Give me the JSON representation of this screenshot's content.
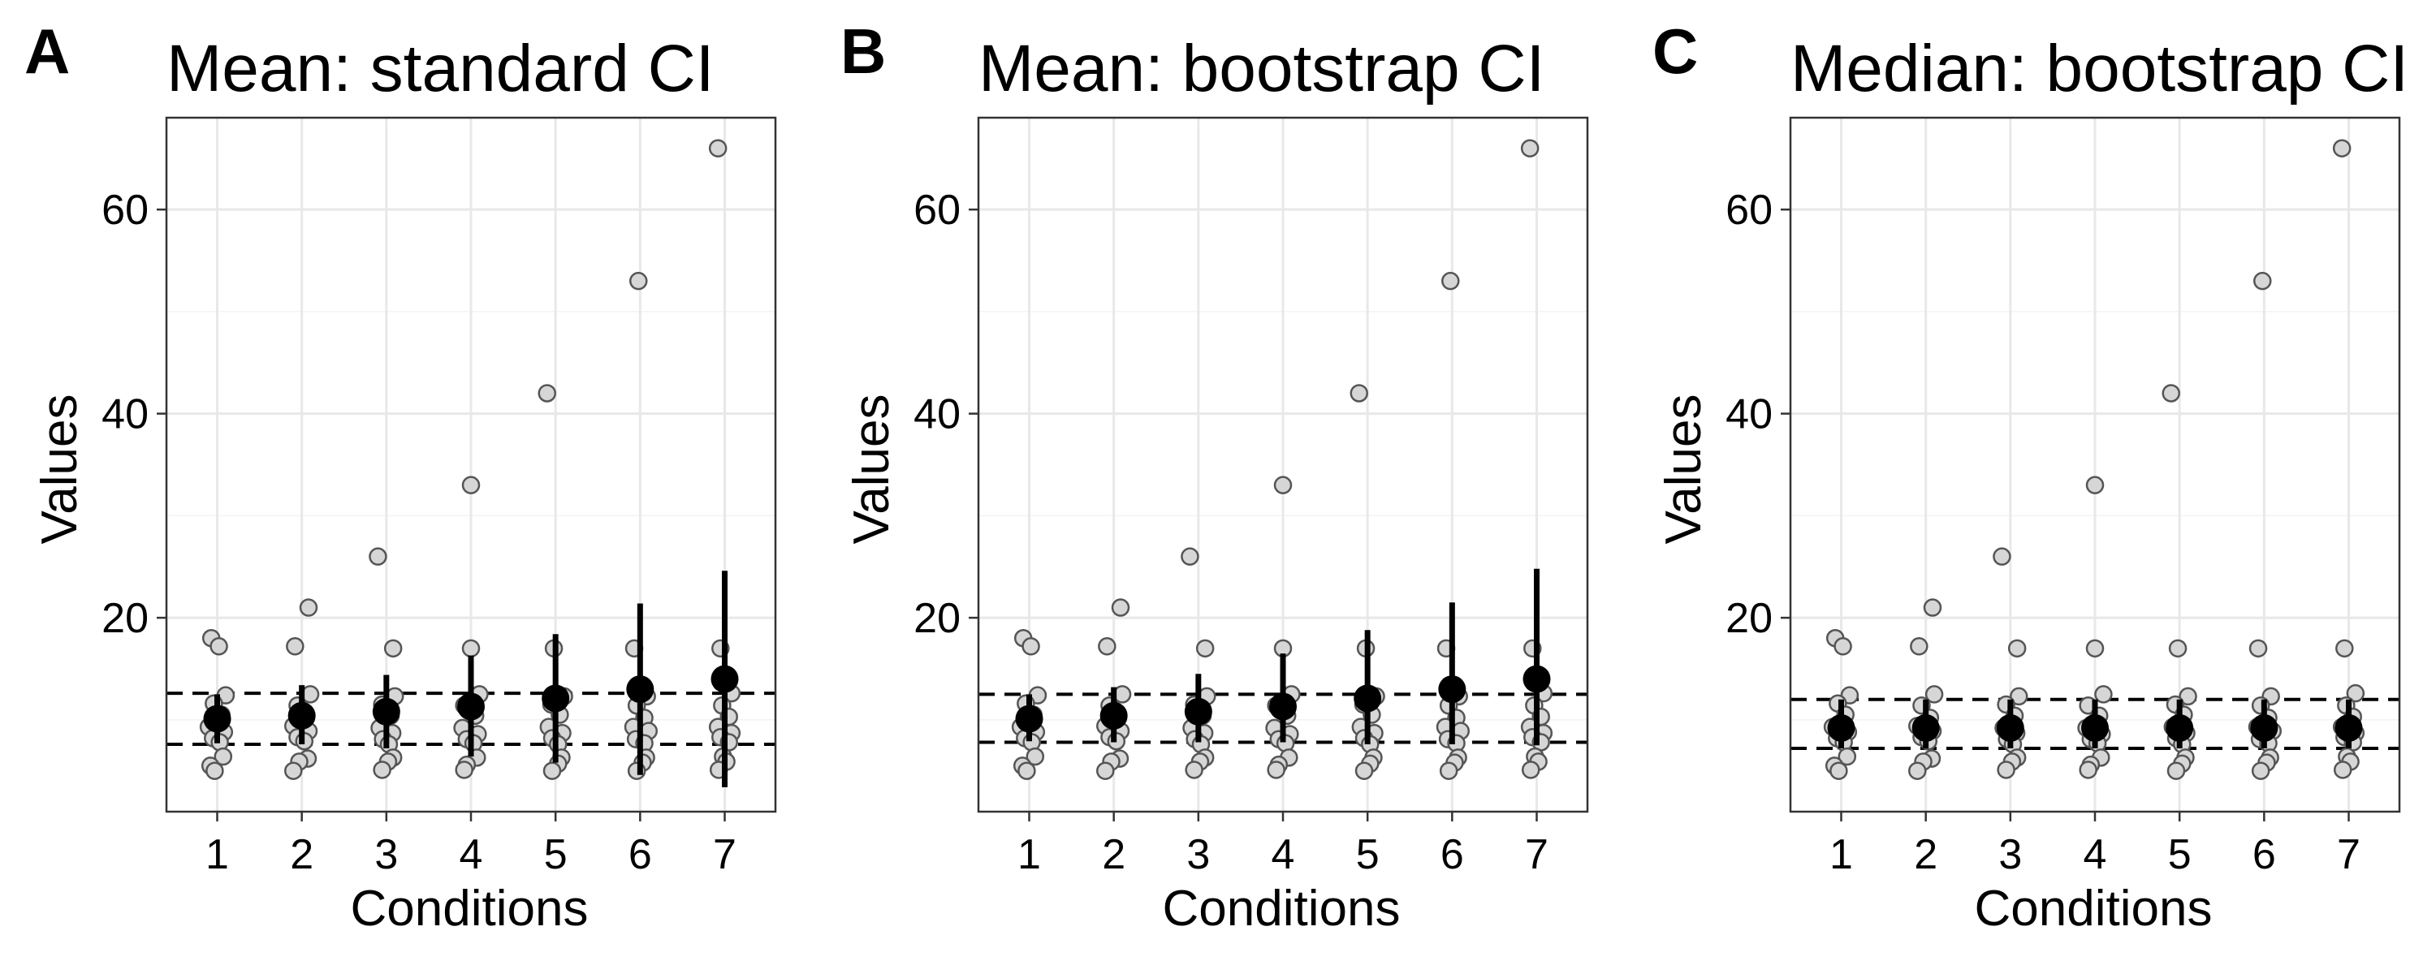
{
  "colors": {
    "raw_fill": "#d6d6d6",
    "raw_stroke": "#555555",
    "summary": "#000000",
    "grid": "#e8e8e8"
  },
  "chart_data": [
    {
      "letter": "A",
      "type": "scatter",
      "title": "Mean: standard CI",
      "xlabel": "Conditions",
      "ylabel": "Values",
      "xlim": [
        0.4,
        7.6
      ],
      "ylim": [
        1,
        69
      ],
      "categories": [
        "1",
        "2",
        "3",
        "4",
        "5",
        "6",
        "7"
      ],
      "yticks": [
        20,
        40,
        60
      ],
      "grid": true,
      "raw_points": [
        [
          [
            0.93,
            18
          ],
          [
            1.02,
            17.2
          ],
          [
            1.1,
            12.4
          ],
          [
            0.96,
            11.6
          ],
          [
            1.05,
            10.5
          ],
          [
            0.9,
            9.3
          ],
          [
            1.08,
            8.8
          ],
          [
            0.95,
            8.2
          ],
          [
            1.03,
            7.8
          ],
          [
            1.07,
            6.4
          ],
          [
            0.92,
            5.5
          ],
          [
            0.97,
            5
          ]
        ],
        [
          [
            1.92,
            17.2
          ],
          [
            2.08,
            21
          ],
          [
            2.1,
            12.5
          ],
          [
            1.95,
            11.4
          ],
          [
            2.05,
            10.2
          ],
          [
            1.9,
            9.4
          ],
          [
            2.08,
            8.9
          ],
          [
            1.95,
            8.3
          ],
          [
            2.03,
            7.9
          ],
          [
            2.07,
            6.2
          ],
          [
            1.97,
            5.9
          ],
          [
            1.9,
            5
          ]
        ],
        [
          [
            2.9,
            26
          ],
          [
            3.08,
            17
          ],
          [
            3.1,
            12.3
          ],
          [
            2.95,
            11.5
          ],
          [
            3.05,
            10.4
          ],
          [
            2.92,
            9.2
          ],
          [
            3.07,
            8.7
          ],
          [
            2.96,
            8.1
          ],
          [
            3.03,
            7.6
          ],
          [
            3.08,
            6.3
          ],
          [
            3.02,
            5.9
          ],
          [
            2.95,
            5.1
          ]
        ],
        [
          [
            4,
            33
          ],
          [
            4,
            17
          ],
          [
            4.1,
            12.5
          ],
          [
            3.92,
            11.4
          ],
          [
            4.05,
            10.4
          ],
          [
            3.9,
            9.2
          ],
          [
            4.08,
            8.6
          ],
          [
            3.95,
            8.1
          ],
          [
            4.03,
            7.7
          ],
          [
            4.07,
            6.3
          ],
          [
            3.95,
            5.6
          ],
          [
            3.92,
            5.1
          ]
        ],
        [
          [
            4.9,
            42
          ],
          [
            4.98,
            17
          ],
          [
            5.1,
            12.3
          ],
          [
            4.95,
            11.5
          ],
          [
            5.05,
            10.5
          ],
          [
            4.92,
            9.3
          ],
          [
            5.08,
            8.7
          ],
          [
            4.96,
            8.2
          ],
          [
            5.03,
            7.6
          ],
          [
            5.07,
            6.3
          ],
          [
            5.03,
            5.7
          ],
          [
            4.96,
            5
          ]
        ],
        [
          [
            5.98,
            53
          ],
          [
            5.93,
            17
          ],
          [
            6.08,
            12.3
          ],
          [
            5.96,
            11.4
          ],
          [
            6.05,
            10.2
          ],
          [
            5.92,
            9.3
          ],
          [
            6.1,
            8.9
          ],
          [
            5.95,
            8.1
          ],
          [
            6.05,
            7.7
          ],
          [
            6.07,
            6.3
          ],
          [
            6.03,
            5.8
          ],
          [
            5.96,
            5
          ]
        ],
        [
          [
            6.92,
            66
          ],
          [
            6.95,
            17
          ],
          [
            7.08,
            12.6
          ],
          [
            6.97,
            11.4
          ],
          [
            7.05,
            10.3
          ],
          [
            6.92,
            9.3
          ],
          [
            7.08,
            8.7
          ],
          [
            6.95,
            8.3
          ],
          [
            7.05,
            7.8
          ],
          [
            6.98,
            6.4
          ],
          [
            7.02,
            5.9
          ],
          [
            6.93,
            5.1
          ]
        ]
      ],
      "summary": [
        {
          "x": 1,
          "y": 10.1,
          "lo": 7.7,
          "hi": 12.5
        },
        {
          "x": 2,
          "y": 10.4,
          "lo": 7.6,
          "hi": 13.4
        },
        {
          "x": 3,
          "y": 10.8,
          "lo": 7.2,
          "hi": 14.4
        },
        {
          "x": 4,
          "y": 11.3,
          "lo": 6.4,
          "hi": 16.3
        },
        {
          "x": 5,
          "y": 12.1,
          "lo": 5.8,
          "hi": 18.4
        },
        {
          "x": 6,
          "y": 13.0,
          "lo": 4.6,
          "hi": 21.4
        },
        {
          "x": 7,
          "y": 14.0,
          "lo": 3.4,
          "hi": 24.6
        }
      ],
      "ref_lines": [
        12.6,
        7.6
      ]
    },
    {
      "letter": "B",
      "type": "scatter",
      "title": "Mean: bootstrap CI",
      "xlabel": "Conditions",
      "ylabel": "Values",
      "xlim": [
        0.4,
        7.6
      ],
      "ylim": [
        1,
        69
      ],
      "categories": [
        "1",
        "2",
        "3",
        "4",
        "5",
        "6",
        "7"
      ],
      "yticks": [
        20,
        40,
        60
      ],
      "grid": true,
      "raw_points": [
        [
          [
            0.93,
            18
          ],
          [
            1.02,
            17.2
          ],
          [
            1.1,
            12.4
          ],
          [
            0.96,
            11.6
          ],
          [
            1.05,
            10.5
          ],
          [
            0.9,
            9.3
          ],
          [
            1.08,
            8.8
          ],
          [
            0.95,
            8.2
          ],
          [
            1.03,
            7.8
          ],
          [
            1.07,
            6.4
          ],
          [
            0.92,
            5.5
          ],
          [
            0.97,
            5
          ]
        ],
        [
          [
            1.92,
            17.2
          ],
          [
            2.08,
            21
          ],
          [
            2.1,
            12.5
          ],
          [
            1.95,
            11.4
          ],
          [
            2.05,
            10.2
          ],
          [
            1.9,
            9.4
          ],
          [
            2.08,
            8.9
          ],
          [
            1.95,
            8.3
          ],
          [
            2.03,
            7.9
          ],
          [
            2.07,
            6.2
          ],
          [
            1.97,
            5.9
          ],
          [
            1.9,
            5
          ]
        ],
        [
          [
            2.9,
            26
          ],
          [
            3.08,
            17
          ],
          [
            3.1,
            12.3
          ],
          [
            2.95,
            11.5
          ],
          [
            3.05,
            10.4
          ],
          [
            2.92,
            9.2
          ],
          [
            3.07,
            8.7
          ],
          [
            2.96,
            8.1
          ],
          [
            3.03,
            7.6
          ],
          [
            3.08,
            6.3
          ],
          [
            3.02,
            5.9
          ],
          [
            2.95,
            5.1
          ]
        ],
        [
          [
            4,
            33
          ],
          [
            4,
            17
          ],
          [
            4.1,
            12.5
          ],
          [
            3.92,
            11.4
          ],
          [
            4.05,
            10.4
          ],
          [
            3.9,
            9.2
          ],
          [
            4.08,
            8.6
          ],
          [
            3.95,
            8.1
          ],
          [
            4.03,
            7.7
          ],
          [
            4.07,
            6.3
          ],
          [
            3.95,
            5.6
          ],
          [
            3.92,
            5.1
          ]
        ],
        [
          [
            4.9,
            42
          ],
          [
            4.98,
            17
          ],
          [
            5.1,
            12.3
          ],
          [
            4.95,
            11.5
          ],
          [
            5.05,
            10.5
          ],
          [
            4.92,
            9.3
          ],
          [
            5.08,
            8.7
          ],
          [
            4.96,
            8.2
          ],
          [
            5.03,
            7.6
          ],
          [
            5.07,
            6.3
          ],
          [
            5.03,
            5.7
          ],
          [
            4.96,
            5
          ]
        ],
        [
          [
            5.98,
            53
          ],
          [
            5.93,
            17
          ],
          [
            6.08,
            12.3
          ],
          [
            5.96,
            11.4
          ],
          [
            6.05,
            10.2
          ],
          [
            5.92,
            9.3
          ],
          [
            6.1,
            8.9
          ],
          [
            5.95,
            8.1
          ],
          [
            6.05,
            7.7
          ],
          [
            6.07,
            6.3
          ],
          [
            6.03,
            5.8
          ],
          [
            5.96,
            5
          ]
        ],
        [
          [
            6.92,
            66
          ],
          [
            6.95,
            17
          ],
          [
            7.08,
            12.6
          ],
          [
            6.97,
            11.4
          ],
          [
            7.05,
            10.3
          ],
          [
            6.92,
            9.3
          ],
          [
            7.08,
            8.7
          ],
          [
            6.95,
            8.3
          ],
          [
            7.05,
            7.8
          ],
          [
            6.98,
            6.4
          ],
          [
            7.02,
            5.9
          ],
          [
            6.93,
            5.1
          ]
        ]
      ],
      "summary": [
        {
          "x": 1,
          "y": 10.1,
          "lo": 7.9,
          "hi": 12.5
        },
        {
          "x": 2,
          "y": 10.4,
          "lo": 7.8,
          "hi": 13.2
        },
        {
          "x": 3,
          "y": 10.8,
          "lo": 7.8,
          "hi": 14.5
        },
        {
          "x": 4,
          "y": 11.3,
          "lo": 7.8,
          "hi": 16.5
        },
        {
          "x": 5,
          "y": 12.1,
          "lo": 7.6,
          "hi": 18.8
        },
        {
          "x": 6,
          "y": 13.0,
          "lo": 7.6,
          "hi": 21.5
        },
        {
          "x": 7,
          "y": 14.0,
          "lo": 7.5,
          "hi": 24.8
        }
      ],
      "ref_lines": [
        12.5,
        7.8
      ]
    },
    {
      "letter": "C",
      "type": "scatter",
      "title": "Median: bootstrap CI",
      "xlabel": "Conditions",
      "ylabel": "Values",
      "xlim": [
        0.4,
        7.6
      ],
      "ylim": [
        1,
        69
      ],
      "categories": [
        "1",
        "2",
        "3",
        "4",
        "5",
        "6",
        "7"
      ],
      "yticks": [
        20,
        40,
        60
      ],
      "grid": true,
      "raw_points": [
        [
          [
            0.93,
            18
          ],
          [
            1.02,
            17.2
          ],
          [
            1.1,
            12.4
          ],
          [
            0.96,
            11.6
          ],
          [
            1.05,
            10.5
          ],
          [
            0.9,
            9.3
          ],
          [
            1.08,
            8.8
          ],
          [
            0.95,
            8.2
          ],
          [
            1.03,
            7.8
          ],
          [
            1.07,
            6.4
          ],
          [
            0.92,
            5.5
          ],
          [
            0.97,
            5
          ]
        ],
        [
          [
            1.92,
            17.2
          ],
          [
            2.08,
            21
          ],
          [
            2.1,
            12.5
          ],
          [
            1.95,
            11.4
          ],
          [
            2.05,
            10.2
          ],
          [
            1.9,
            9.4
          ],
          [
            2.08,
            8.9
          ],
          [
            1.95,
            8.3
          ],
          [
            2.03,
            7.9
          ],
          [
            2.07,
            6.2
          ],
          [
            1.97,
            5.9
          ],
          [
            1.9,
            5
          ]
        ],
        [
          [
            2.9,
            26
          ],
          [
            3.08,
            17
          ],
          [
            3.1,
            12.3
          ],
          [
            2.95,
            11.5
          ],
          [
            3.05,
            10.4
          ],
          [
            2.92,
            9.2
          ],
          [
            3.07,
            8.7
          ],
          [
            2.96,
            8.1
          ],
          [
            3.03,
            7.6
          ],
          [
            3.08,
            6.3
          ],
          [
            3.02,
            5.9
          ],
          [
            2.95,
            5.1
          ]
        ],
        [
          [
            4,
            33
          ],
          [
            4,
            17
          ],
          [
            4.1,
            12.5
          ],
          [
            3.92,
            11.4
          ],
          [
            4.05,
            10.4
          ],
          [
            3.9,
            9.2
          ],
          [
            4.08,
            8.6
          ],
          [
            3.95,
            8.1
          ],
          [
            4.03,
            7.7
          ],
          [
            4.07,
            6.3
          ],
          [
            3.95,
            5.6
          ],
          [
            3.92,
            5.1
          ]
        ],
        [
          [
            4.9,
            42
          ],
          [
            4.98,
            17
          ],
          [
            5.1,
            12.3
          ],
          [
            4.95,
            11.5
          ],
          [
            5.05,
            10.5
          ],
          [
            4.92,
            9.3
          ],
          [
            5.08,
            8.7
          ],
          [
            4.96,
            8.2
          ],
          [
            5.03,
            7.6
          ],
          [
            5.07,
            6.3
          ],
          [
            5.03,
            5.7
          ],
          [
            4.96,
            5
          ]
        ],
        [
          [
            5.98,
            53
          ],
          [
            5.93,
            17
          ],
          [
            6.08,
            12.3
          ],
          [
            5.96,
            11.4
          ],
          [
            6.05,
            10.2
          ],
          [
            5.92,
            9.3
          ],
          [
            6.1,
            8.9
          ],
          [
            5.95,
            8.1
          ],
          [
            6.05,
            7.7
          ],
          [
            6.07,
            6.3
          ],
          [
            6.03,
            5.8
          ],
          [
            5.96,
            5
          ]
        ],
        [
          [
            6.92,
            66
          ],
          [
            6.95,
            17
          ],
          [
            7.08,
            12.6
          ],
          [
            6.97,
            11.4
          ],
          [
            7.05,
            10.3
          ],
          [
            6.92,
            9.3
          ],
          [
            7.08,
            8.7
          ],
          [
            6.95,
            8.3
          ],
          [
            7.05,
            7.8
          ],
          [
            6.98,
            6.4
          ],
          [
            7.02,
            5.9
          ],
          [
            6.93,
            5.1
          ]
        ]
      ],
      "summary": [
        {
          "x": 1,
          "y": 9.2,
          "lo": 7.2,
          "hi": 12.0
        },
        {
          "x": 2,
          "y": 9.2,
          "lo": 7.2,
          "hi": 12.0
        },
        {
          "x": 3,
          "y": 9.2,
          "lo": 7.2,
          "hi": 12.0
        },
        {
          "x": 4,
          "y": 9.2,
          "lo": 7.2,
          "hi": 12.0
        },
        {
          "x": 5,
          "y": 9.2,
          "lo": 7.2,
          "hi": 12.0
        },
        {
          "x": 6,
          "y": 9.2,
          "lo": 7.2,
          "hi": 12.0
        },
        {
          "x": 7,
          "y": 9.2,
          "lo": 7.2,
          "hi": 12.0
        }
      ],
      "ref_lines": [
        12.0,
        7.2
      ]
    }
  ]
}
